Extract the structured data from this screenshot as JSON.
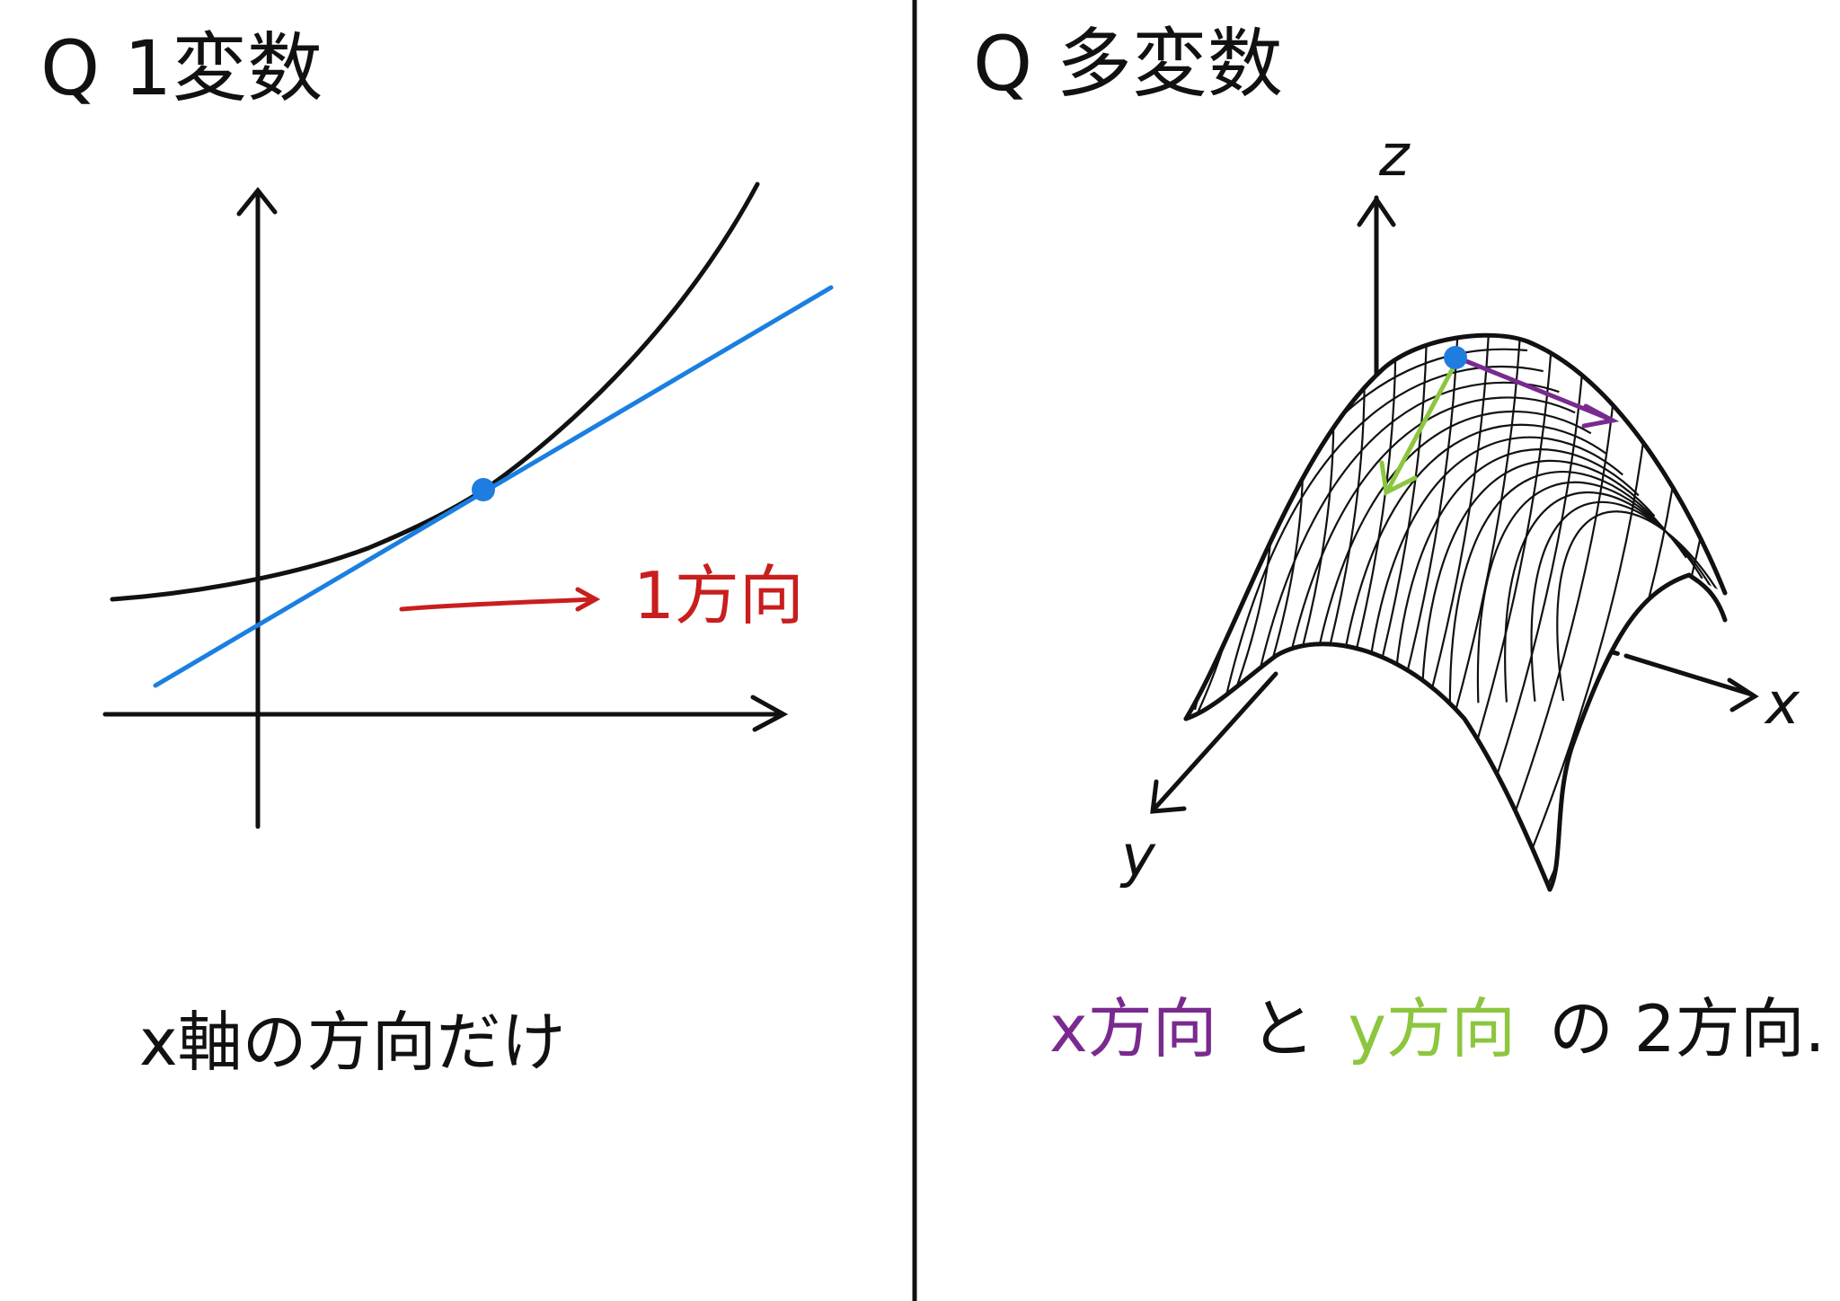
{
  "left_panel": {
    "title": "Q 1変数",
    "direction_label": "1方向",
    "caption": "x軸の方向だけ"
  },
  "right_panel": {
    "title": "Q 多変数",
    "axis_z": "z",
    "axis_x": "x",
    "axis_y": "y",
    "caption_parts": [
      "x方向",
      "と",
      "y方向",
      "の 2方向."
    ]
  },
  "colors": {
    "ink": "#111111",
    "tangent_blue": "#1a7fe0",
    "point_blue": "#1f7de0",
    "direction_red": "#c81e1e",
    "x_direction_purple": "#7a2a8f",
    "y_direction_green": "#8cc63f"
  },
  "icons": {
    "point": "filled-circle",
    "arrow": "open-chevron-arrowhead"
  }
}
